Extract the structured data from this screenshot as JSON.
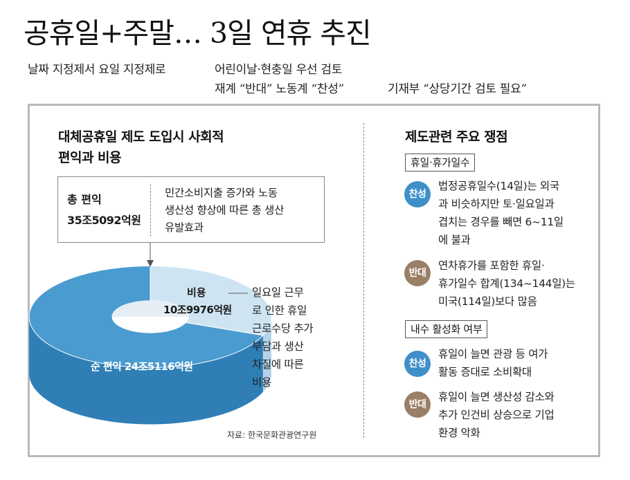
{
  "headline": "공휴일+주말… 3일 연휴 추진",
  "subheads": {
    "line1_left": "날짜 지정제서 요일 지정제로",
    "line1_right": "어린이날·현충일 우선 검토",
    "line2_left": "재계 “반대” 노동계 “찬성”",
    "line2_right": "기재부 “상당기간 검토 필요”"
  },
  "left_section": {
    "title_line1": "대체공휴일 제도 도입시 사회적",
    "title_line2": "편익과 비용",
    "total": {
      "label": "총 편익",
      "value": "35조5092억원",
      "desc": [
        "민간소비지출 증가와 노동",
        "생산성 향상에 따른 총 생산",
        "유발효과"
      ]
    },
    "cost": {
      "label": "비용",
      "value": "10조9976억원",
      "desc": [
        "일요일 근무",
        "로 인한 휴일",
        "근로수당 추가",
        "부담과 생산",
        "차질에 따른",
        "비용"
      ]
    },
    "net": {
      "label": "순 편익",
      "value": "24조5116억원"
    },
    "source": "자료: 한국문화관광연구원"
  },
  "chart_data": {
    "type": "pie",
    "title": "대체공휴일 제도 도입시 사회적 편익과 비용",
    "unit": "억원",
    "total": 355092,
    "slices": [
      {
        "name": "비용",
        "value": 109976,
        "color": "#cfe4f3"
      },
      {
        "name": "순 편익",
        "value": 245116,
        "color": "#4a9bd0"
      }
    ],
    "style": "3d-donut"
  },
  "right_section": {
    "title": "제도관련 주요 쟁점",
    "topics": [
      {
        "tag": "휴일·휴가일수",
        "items": [
          {
            "badge": "찬성",
            "lines": [
              "법정공휴일수(14일)는 외국",
              "과 비슷하지만 토·일요일과",
              "겹치는 경우를 빼면 6~11일",
              "에 불과"
            ]
          },
          {
            "badge": "반대",
            "lines": [
              "연차휴가를 포함한 휴일·",
              "휴가일수 합계(134~144일)는",
              "미국(114일)보다 많음"
            ]
          }
        ]
      },
      {
        "tag": "내수 활성화 여부",
        "items": [
          {
            "badge": "찬성",
            "lines": [
              "휴일이 늘면 관광 등 여가",
              "활동 증대로 소비확대"
            ]
          },
          {
            "badge": "반대",
            "lines": [
              "휴일이 늘면 생산성 감소와",
              "추가 인건비 상승으로 기업",
              "환경 악화"
            ]
          }
        ]
      }
    ],
    "badge_colors": {
      "찬성": "#3f8fc8",
      "반대": "#9a7f67"
    }
  },
  "colors": {
    "frame": "#b8b8b8",
    "net_top": "#4a9bd0",
    "net_side": "#2f7fb6",
    "cost_top": "#cfe4f3",
    "cost_side": "#b5d2ea"
  }
}
